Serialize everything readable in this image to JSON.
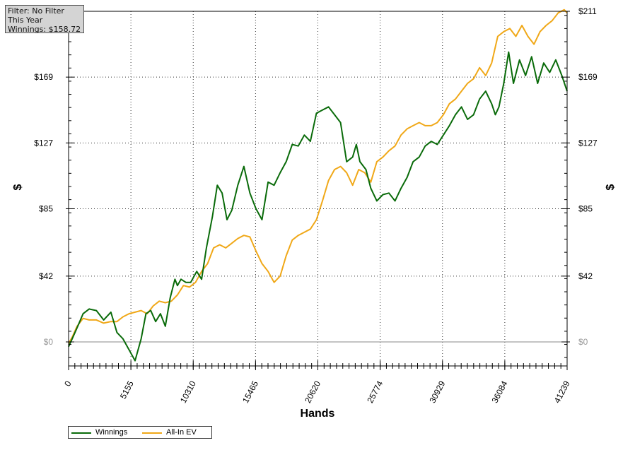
{
  "info": {
    "line1": "Filter: No Filter",
    "line2": "This Year",
    "line3": "Winnings: $158.72"
  },
  "legend": {
    "winnings_label": "Winnings",
    "ev_label": "All-In EV"
  },
  "chart_data": {
    "type": "line",
    "title": "",
    "xlabel": "Hands",
    "ylabel": "$",
    "xlim": [
      0,
      41239
    ],
    "ylim": [
      -12,
      211
    ],
    "x_ticks": [
      0,
      5155,
      10310,
      15465,
      20620,
      25774,
      30929,
      36084,
      41239
    ],
    "x_tick_labels": [
      "0",
      "5155",
      "10310",
      "15465",
      "20620",
      "25774",
      "30929",
      "36084",
      "41239"
    ],
    "y_ticks": [
      0,
      42,
      85,
      127,
      169,
      211
    ],
    "y_tick_labels": [
      "$0",
      "$42",
      "$85",
      "$127",
      "$169",
      "$211"
    ],
    "grid": true,
    "colors": {
      "winnings": "#0a6b0a",
      "ev": "#f0a818",
      "axis": "#000000"
    },
    "series": [
      {
        "name": "Winnings",
        "x": [
          0,
          300,
          700,
          1200,
          1700,
          2300,
          2900,
          3500,
          4000,
          4500,
          5000,
          5500,
          6000,
          6400,
          6800,
          7200,
          7600,
          8000,
          8400,
          8800,
          9000,
          9300,
          9700,
          10100,
          10600,
          11000,
          11400,
          11900,
          12300,
          12700,
          13100,
          13500,
          14000,
          14500,
          15000,
          15500,
          16000,
          16500,
          17000,
          17500,
          18000,
          18500,
          19000,
          19500,
          20000,
          20500,
          21000,
          21500,
          22000,
          22500,
          23000,
          23500,
          23800,
          24100,
          24600,
          25000,
          25500,
          26000,
          26500,
          27000,
          27500,
          28000,
          28500,
          29000,
          29500,
          30000,
          30500,
          31000,
          31500,
          32000,
          32500,
          33000,
          33500,
          34000,
          34500,
          35000,
          35300,
          35600,
          36000,
          36400,
          36800,
          37300,
          37800,
          38300,
          38800,
          39300,
          39800,
          40300,
          40800,
          41239
        ],
        "y": [
          -3,
          2,
          9,
          18,
          21,
          20,
          14,
          19,
          6,
          2,
          -5,
          -12,
          2,
          18,
          20,
          13,
          18,
          10,
          28,
          40,
          36,
          40,
          38,
          38,
          45,
          40,
          60,
          80,
          100,
          95,
          78,
          84,
          100,
          112,
          95,
          85,
          78,
          102,
          100,
          108,
          115,
          126,
          125,
          132,
          128,
          146,
          148,
          150,
          145,
          140,
          115,
          118,
          126,
          115,
          110,
          98,
          90,
          94,
          95,
          90,
          98,
          105,
          115,
          118,
          125,
          128,
          126,
          132,
          138,
          145,
          150,
          142,
          145,
          155,
          160,
          152,
          145,
          150,
          165,
          185,
          165,
          180,
          170,
          182,
          165,
          178,
          172,
          180,
          170,
          160
        ]
      },
      {
        "name": "All-In EV",
        "x": [
          0,
          300,
          700,
          1200,
          1700,
          2300,
          2900,
          3500,
          4000,
          4500,
          5000,
          5500,
          6000,
          6500,
          7000,
          7500,
          8000,
          8500,
          9000,
          9500,
          10000,
          10500,
          11000,
          11500,
          12000,
          12500,
          13000,
          13500,
          14000,
          14500,
          15000,
          15500,
          16000,
          16500,
          17000,
          17500,
          18000,
          18500,
          19000,
          19500,
          20000,
          20500,
          21000,
          21500,
          22000,
          22500,
          23000,
          23500,
          24000,
          24500,
          25000,
          25500,
          26000,
          26500,
          27000,
          27500,
          28000,
          28500,
          29000,
          29500,
          30000,
          30500,
          31000,
          31500,
          32000,
          32500,
          33000,
          33500,
          34000,
          34500,
          35000,
          35500,
          36000,
          36500,
          37000,
          37500,
          38000,
          38500,
          39000,
          39500,
          40000,
          40500,
          41000,
          41239
        ],
        "y": [
          -1,
          3,
          10,
          15,
          14,
          14,
          12,
          13,
          13,
          16,
          18,
          19,
          20,
          18,
          23,
          26,
          25,
          26,
          30,
          36,
          35,
          38,
          45,
          50,
          60,
          62,
          60,
          63,
          66,
          68,
          67,
          58,
          50,
          45,
          38,
          42,
          55,
          65,
          68,
          70,
          72,
          78,
          90,
          103,
          110,
          112,
          108,
          100,
          110,
          108,
          102,
          115,
          118,
          122,
          125,
          132,
          136,
          138,
          140,
          138,
          138,
          140,
          145,
          152,
          155,
          160,
          165,
          168,
          175,
          170,
          178,
          195,
          198,
          200,
          195,
          202,
          195,
          190,
          198,
          202,
          205,
          210,
          212,
          210
        ]
      }
    ]
  }
}
